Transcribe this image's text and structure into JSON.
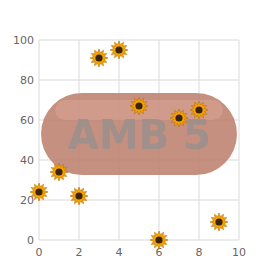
{
  "chart_data": {
    "type": "scatter",
    "x": [
      0,
      1,
      2,
      3,
      4,
      5,
      6,
      7,
      8,
      9
    ],
    "values": [
      24,
      34,
      22,
      91,
      95,
      67,
      0,
      61,
      65,
      9
    ],
    "color": "#f5a300",
    "marker": "flower",
    "xlim": [
      0,
      10
    ],
    "xticks": [
      0,
      2,
      4,
      6,
      8,
      10
    ],
    "ylim": [
      0,
      100
    ],
    "yticks": [
      0,
      20,
      40,
      60,
      80,
      100
    ],
    "grid": true,
    "annotations": [
      "AMB 5"
    ]
  }
}
